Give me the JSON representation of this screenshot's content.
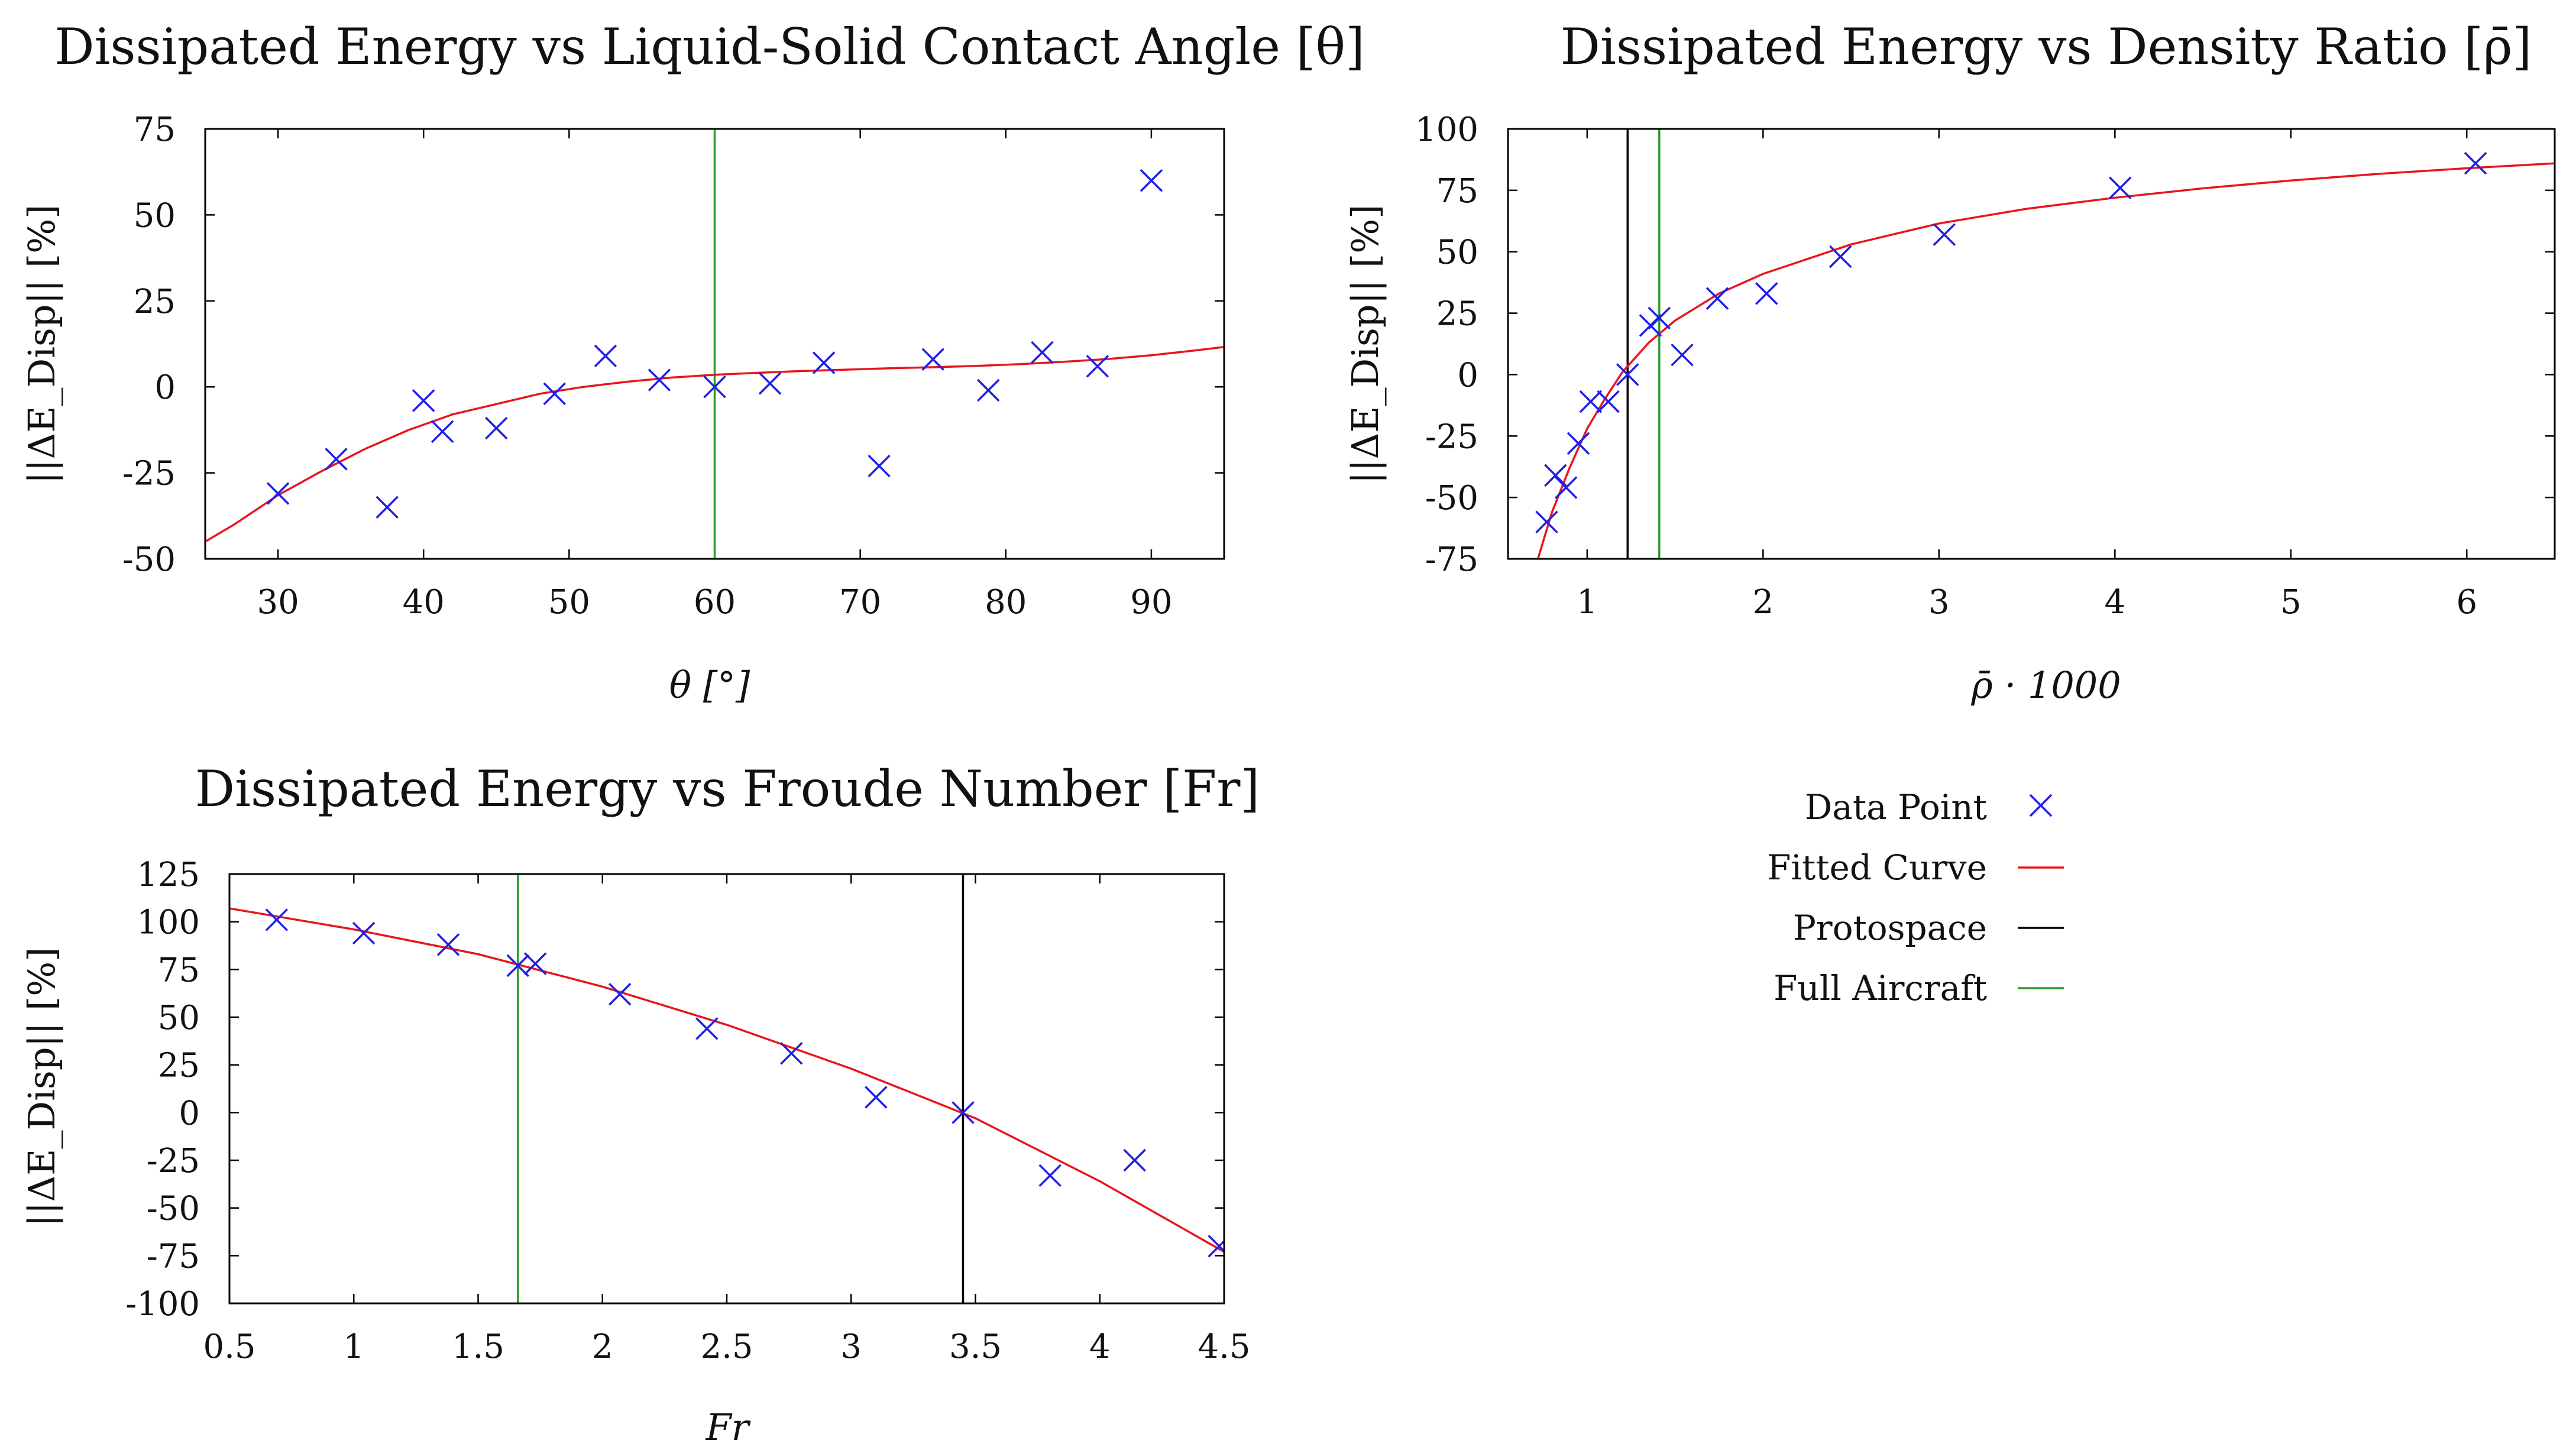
{
  "colors": {
    "data": "#1f1fe6",
    "fit": "#e8161e",
    "protospace": "#000000",
    "full_aircraft": "#2a9a2a"
  },
  "legend": {
    "items": [
      {
        "label": "Data Point",
        "kind": "marker",
        "color": "#1f1fe6"
      },
      {
        "label": "Fitted Curve",
        "kind": "line",
        "color": "#e8161e"
      },
      {
        "label": "Protospace",
        "kind": "line",
        "color": "#000000"
      },
      {
        "label": "Full Aircraft",
        "kind": "line",
        "color": "#2a9a2a"
      }
    ]
  },
  "chart_data": [
    {
      "id": "theta",
      "type": "scatter",
      "title": "Dissipated Energy vs Liquid-Solid Contact Angle [θ]",
      "xlabel": "θ [°]",
      "ylabel": "||ΔE_Disp|| [%]",
      "xlim": [
        25,
        95
      ],
      "ylim": [
        -50,
        75
      ],
      "xticks": [
        30,
        40,
        50,
        60,
        70,
        80,
        90
      ],
      "yticks": [
        -50,
        -25,
        0,
        25,
        50,
        75
      ],
      "xtick_labels": [
        "30",
        "40",
        "50",
        "60",
        "70",
        "80",
        "90"
      ],
      "ytick_labels": [
        "-50",
        "-25",
        "0",
        "25",
        "50",
        "75"
      ],
      "points": [
        [
          30,
          -31
        ],
        [
          34,
          -21
        ],
        [
          37.5,
          -35
        ],
        [
          40,
          -4
        ],
        [
          41.3,
          -13
        ],
        [
          45,
          -12
        ],
        [
          49,
          -2
        ],
        [
          52.5,
          9
        ],
        [
          56.2,
          2
        ],
        [
          60,
          0
        ],
        [
          63.8,
          1
        ],
        [
          67.5,
          7
        ],
        [
          71.3,
          -23
        ],
        [
          75,
          8
        ],
        [
          78.8,
          -1
        ],
        [
          82.5,
          10
        ],
        [
          86.3,
          6
        ],
        [
          90,
          60
        ]
      ],
      "fit": [
        [
          25,
          -45
        ],
        [
          27,
          -40
        ],
        [
          30,
          -31.5
        ],
        [
          33,
          -24.5
        ],
        [
          36,
          -18
        ],
        [
          39,
          -12.5
        ],
        [
          42,
          -8
        ],
        [
          45,
          -5
        ],
        [
          48,
          -2
        ],
        [
          51,
          0
        ],
        [
          54,
          1.5
        ],
        [
          57,
          2.7
        ],
        [
          60,
          3.5
        ],
        [
          63,
          4.1
        ],
        [
          66,
          4.6
        ],
        [
          69,
          5
        ],
        [
          72,
          5.4
        ],
        [
          75,
          5.7
        ],
        [
          78,
          6.1
        ],
        [
          81,
          6.6
        ],
        [
          84,
          7.3
        ],
        [
          87,
          8.1
        ],
        [
          90,
          9.2
        ],
        [
          93,
          10.6
        ],
        [
          95,
          11.6
        ]
      ],
      "full_aircraft_x": 60,
      "protospace_x": null
    },
    {
      "id": "rho",
      "type": "scatter",
      "title": "Dissipated Energy vs Density Ratio [ρ̄]",
      "xlabel": "ρ̄ · 1000",
      "ylabel": "||ΔE_Disp|| [%]",
      "xlim": [
        0.55,
        6.5
      ],
      "ylim": [
        -75,
        100
      ],
      "xticks": [
        1,
        2,
        3,
        4,
        5,
        6
      ],
      "yticks": [
        -75,
        -50,
        -25,
        0,
        25,
        50,
        75,
        100
      ],
      "xtick_labels": [
        "1",
        "2",
        "3",
        "4",
        "5",
        "6"
      ],
      "ytick_labels": [
        "-75",
        "-50",
        "-25",
        "0",
        "25",
        "50",
        "75",
        "100"
      ],
      "points": [
        [
          0.77,
          -60
        ],
        [
          0.82,
          -41
        ],
        [
          0.88,
          -46
        ],
        [
          0.95,
          -28
        ],
        [
          1.02,
          -11
        ],
        [
          1.12,
          -11
        ],
        [
          1.23,
          0
        ],
        [
          1.36,
          20
        ],
        [
          1.41,
          23
        ],
        [
          1.54,
          8
        ],
        [
          1.74,
          31
        ],
        [
          2.02,
          33
        ],
        [
          2.44,
          48
        ],
        [
          3.03,
          57
        ],
        [
          4.03,
          76
        ],
        [
          6.05,
          86
        ]
      ],
      "fit": [
        [
          0.72,
          -75
        ],
        [
          0.8,
          -56
        ],
        [
          0.9,
          -38
        ],
        [
          1.0,
          -22
        ],
        [
          1.1,
          -10
        ],
        [
          1.2,
          1
        ],
        [
          1.35,
          13
        ],
        [
          1.5,
          22
        ],
        [
          1.75,
          33
        ],
        [
          2.0,
          41
        ],
        [
          2.5,
          53
        ],
        [
          3.0,
          61.5
        ],
        [
          3.5,
          67.5
        ],
        [
          4.0,
          72
        ],
        [
          4.5,
          75.8
        ],
        [
          5.0,
          79
        ],
        [
          5.5,
          81.7
        ],
        [
          6.0,
          84
        ],
        [
          6.5,
          86
        ]
      ],
      "protospace_x": 1.23,
      "full_aircraft_x": 1.41
    },
    {
      "id": "froude",
      "type": "scatter",
      "title": "Dissipated Energy vs Froude Number [Fr]",
      "xlabel": "Fr",
      "ylabel": "||ΔE_Disp|| [%]",
      "xlim": [
        0.5,
        4.5
      ],
      "ylim": [
        -100,
        125
      ],
      "xticks": [
        0.5,
        1,
        1.5,
        2,
        2.5,
        3,
        3.5,
        4,
        4.5
      ],
      "yticks": [
        -100,
        -75,
        -50,
        -25,
        0,
        25,
        50,
        75,
        100,
        125
      ],
      "xtick_labels": [
        "0.5",
        "1",
        "1.5",
        "2",
        "2.5",
        "3",
        "3.5",
        "4",
        "4.5"
      ],
      "ytick_labels": [
        "-100",
        "-75",
        "-50",
        "-25",
        "0",
        "25",
        "50",
        "75",
        "100",
        "125"
      ],
      "points": [
        [
          0.69,
          101
        ],
        [
          1.04,
          94
        ],
        [
          1.38,
          88
        ],
        [
          1.66,
          77
        ],
        [
          1.73,
          78
        ],
        [
          2.07,
          62
        ],
        [
          2.42,
          44
        ],
        [
          2.76,
          31
        ],
        [
          3.1,
          8
        ],
        [
          3.45,
          0
        ],
        [
          3.8,
          -33
        ],
        [
          4.14,
          -25
        ],
        [
          4.48,
          -70
        ]
      ],
      "fit": [
        [
          0.5,
          107
        ],
        [
          1.0,
          96
        ],
        [
          1.5,
          83
        ],
        [
          2.0,
          66
        ],
        [
          2.5,
          46
        ],
        [
          3.0,
          23
        ],
        [
          3.5,
          -3
        ],
        [
          4.0,
          -36
        ],
        [
          4.5,
          -73
        ]
      ],
      "protospace_x": 3.45,
      "full_aircraft_x": 1.66
    }
  ]
}
